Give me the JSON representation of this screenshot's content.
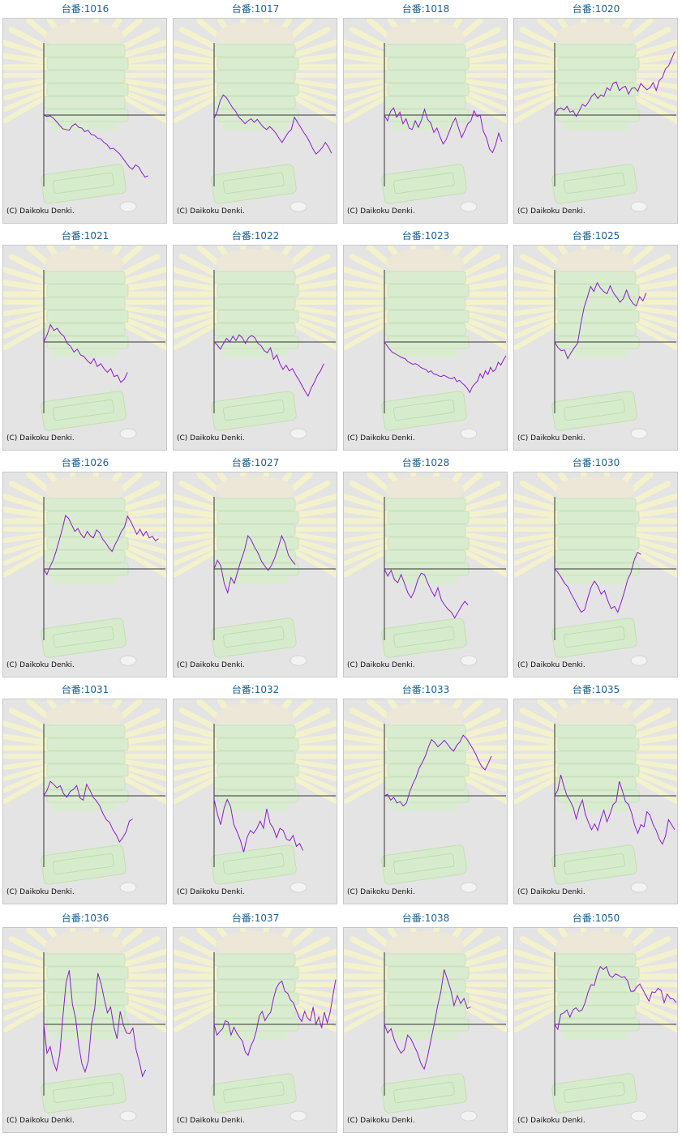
{
  "copyright": "(C) Daikoku Denki.",
  "colors": {
    "line": "#8a1ec8",
    "title": "#1c5f8e",
    "axis": "#333333",
    "background": "#e4e4e4"
  },
  "charts": [
    {
      "title": "台番:1016",
      "chart_data": {
        "type": "line",
        "values": [
          0,
          -2,
          -1,
          -4,
          -9,
          -14,
          -19,
          -20,
          -21,
          -15,
          -12,
          -17,
          -18,
          -23,
          -21,
          -27,
          -28,
          -32,
          -33,
          -38,
          -41,
          -47,
          -46,
          -50,
          -54,
          -60,
          -66,
          -72,
          -75,
          -69,
          -72,
          -80,
          -86,
          -84
        ]
      }
    },
    {
      "title": "台番:1017",
      "chart_data": {
        "type": "line",
        "values": [
          -5,
          5,
          20,
          28,
          24,
          17,
          10,
          5,
          -3,
          -7,
          -12,
          -8,
          -5,
          -10,
          -6,
          -12,
          -17,
          -20,
          -16,
          -20,
          -25,
          -32,
          -38,
          -31,
          -24,
          -20,
          -3,
          -10,
          -17,
          -24,
          -30,
          -38,
          -47,
          -54,
          -50,
          -45,
          -38,
          -44,
          -53
        ]
      }
    },
    {
      "title": "台番:1018",
      "chart_data": {
        "type": "line",
        "values": [
          0,
          -8,
          5,
          10,
          -3,
          4,
          -12,
          -5,
          -18,
          -20,
          -8,
          -17,
          -7,
          8,
          -6,
          -11,
          -24,
          -18,
          -30,
          -40,
          -34,
          -23,
          -12,
          -4,
          -18,
          -31,
          -22,
          -12,
          -8,
          6,
          -2,
          0,
          -22,
          -31,
          -47,
          -52,
          -41,
          -25,
          -37
        ]
      }
    },
    {
      "title": "台番:1020",
      "chart_data": {
        "type": "line",
        "values": [
          0,
          8,
          10,
          7,
          12,
          4,
          6,
          -2,
          6,
          15,
          12,
          18,
          26,
          30,
          23,
          28,
          26,
          38,
          34,
          44,
          46,
          34,
          38,
          40,
          29,
          37,
          38,
          33,
          44,
          39,
          35,
          38,
          45,
          34,
          48,
          52,
          64,
          68,
          78,
          88
        ]
      }
    },
    {
      "title": "台番:1021",
      "chart_data": {
        "type": "line",
        "values": [
          0,
          10,
          24,
          16,
          19,
          12,
          8,
          -2,
          -6,
          -14,
          -10,
          -18,
          -20,
          -26,
          -30,
          -23,
          -34,
          -30,
          -37,
          -42,
          -37,
          -48,
          -46,
          -56,
          -52,
          -42
        ]
      }
    },
    {
      "title": "台番:1022",
      "chart_data": {
        "type": "line",
        "values": [
          0,
          -4,
          -10,
          -2,
          5,
          0,
          8,
          2,
          10,
          6,
          -2,
          6,
          9,
          6,
          -2,
          -5,
          -12,
          -15,
          -8,
          -24,
          -18,
          -30,
          -38,
          -32,
          -40,
          -37,
          -45,
          -52,
          -60,
          -68,
          -75,
          -64,
          -56,
          -46,
          -40,
          -30
        ]
      }
    },
    {
      "title": "台番:1023",
      "chart_data": {
        "type": "line",
        "values": [
          0,
          -5,
          -10,
          -14,
          -16,
          -18,
          -20,
          -22,
          -23,
          -27,
          -29,
          -31,
          -30,
          -32,
          -35,
          -37,
          -38,
          -42,
          -40,
          -44,
          -45,
          -47,
          -48,
          -46,
          -48,
          -50,
          -51,
          -49,
          -55,
          -53,
          -57,
          -60,
          -64,
          -70,
          -62,
          -58,
          -54,
          -44,
          -50,
          -40,
          -45,
          -35,
          -41,
          -38,
          -28,
          -32,
          -25,
          -19
        ]
      }
    },
    {
      "title": "台番:1025",
      "chart_data": {
        "type": "line",
        "values": [
          0,
          -8,
          -12,
          -11,
          -23,
          -15,
          -8,
          -2,
          25,
          48,
          62,
          77,
          70,
          82,
          75,
          70,
          67,
          78,
          68,
          62,
          55,
          60,
          72,
          60,
          53,
          50,
          63,
          57,
          68
        ]
      }
    },
    {
      "title": "台番:1026",
      "chart_data": {
        "type": "line",
        "values": [
          0,
          -8,
          3,
          12,
          25,
          40,
          56,
          74,
          70,
          61,
          52,
          56,
          48,
          43,
          52,
          46,
          43,
          54,
          50,
          41,
          36,
          29,
          24,
          34,
          42,
          52,
          58,
          73,
          66,
          57,
          48,
          55,
          46,
          52,
          43,
          45,
          39,
          42
        ]
      }
    },
    {
      "title": "台番:1027",
      "chart_data": {
        "type": "line",
        "values": [
          0,
          12,
          4,
          -20,
          -33,
          -12,
          -20,
          -3,
          12,
          26,
          46,
          40,
          30,
          22,
          11,
          4,
          -2,
          5,
          16,
          30,
          46,
          36,
          19,
          12,
          6
        ]
      }
    },
    {
      "title": "台番:1028",
      "chart_data": {
        "type": "line",
        "values": [
          0,
          -10,
          -2,
          -15,
          -19,
          -8,
          -20,
          -33,
          -40,
          -30,
          -15,
          -6,
          -8,
          -20,
          -30,
          -38,
          -26,
          -43,
          -50,
          -56,
          -60,
          -68,
          -60,
          -52,
          -45,
          -50
        ]
      }
    },
    {
      "title": "台番:1030",
      "chart_data": {
        "type": "line",
        "values": [
          0,
          -5,
          -12,
          -20,
          -25,
          -35,
          -43,
          -52,
          -60,
          -57,
          -40,
          -25,
          -17,
          -24,
          -35,
          -30,
          -44,
          -55,
          -52,
          -60,
          -47,
          -32,
          -15,
          -5,
          13,
          23,
          20
        ]
      }
    },
    {
      "title": "台番:1031",
      "chart_data": {
        "type": "line",
        "values": [
          0,
          8,
          20,
          16,
          11,
          14,
          3,
          -2,
          6,
          9,
          14,
          -3,
          -6,
          16,
          8,
          -2,
          -7,
          -14,
          -25,
          -33,
          -37,
          -47,
          -54,
          -64,
          -58,
          -50,
          -35,
          -32
        ]
      }
    },
    {
      "title": "台番:1032",
      "chart_data": {
        "type": "line",
        "values": [
          -5,
          -25,
          -40,
          -18,
          -5,
          -15,
          -40,
          -50,
          -62,
          -78,
          -58,
          -48,
          -52,
          -45,
          -35,
          -45,
          -18,
          -38,
          -45,
          -58,
          -45,
          -48,
          -60,
          -62,
          -55,
          -70,
          -66,
          -76
        ]
      }
    },
    {
      "title": "台番:1033",
      "chart_data": {
        "type": "line",
        "values": [
          0,
          2,
          -6,
          -2,
          -10,
          -8,
          -14,
          -10,
          5,
          16,
          25,
          38,
          46,
          55,
          68,
          78,
          74,
          68,
          72,
          77,
          72,
          66,
          62,
          70,
          75,
          84,
          80,
          73,
          66,
          58,
          48,
          40,
          36,
          45,
          55
        ]
      }
    },
    {
      "title": "台番:1035",
      "chart_data": {
        "type": "line",
        "values": [
          0,
          8,
          29,
          13,
          0,
          -7,
          -16,
          -32,
          -16,
          -6,
          -26,
          -37,
          -47,
          -39,
          -48,
          -32,
          -20,
          -36,
          -25,
          -12,
          -8,
          20,
          7,
          -8,
          -12,
          -24,
          -41,
          -52,
          -40,
          -43,
          -22,
          -27,
          -40,
          -48,
          -60,
          -67,
          -56,
          -33,
          -40,
          -47
        ]
      }
    },
    {
      "title": "台番:1036",
      "chart_data": {
        "type": "line",
        "values": [
          0,
          -40,
          -31,
          -52,
          -64,
          -42,
          10,
          58,
          75,
          28,
          8,
          -30,
          -55,
          -66,
          -50,
          0,
          22,
          71,
          56,
          35,
          16,
          24,
          -3,
          -20,
          18,
          -1,
          -12,
          -13,
          -5,
          -35,
          -52,
          -72,
          -63
        ]
      }
    },
    {
      "title": "台番:1037",
      "chart_data": {
        "type": "line",
        "values": [
          0,
          -15,
          -10,
          -6,
          5,
          3,
          -15,
          -4,
          -12,
          -18,
          -23,
          -38,
          -43,
          -30,
          -22,
          -8,
          12,
          18,
          5,
          12,
          17,
          36,
          50,
          57,
          60,
          46,
          43,
          34,
          30,
          20,
          10,
          4,
          18,
          9,
          5,
          24,
          0,
          10,
          -5,
          17,
          2,
          16,
          40,
          62
        ]
      }
    },
    {
      "title": "台番:1038",
      "chart_data": {
        "type": "line",
        "values": [
          0,
          -12,
          -6,
          -22,
          -32,
          -40,
          -35,
          -15,
          -20,
          -30,
          -40,
          -54,
          -62,
          -45,
          -22,
          0,
          25,
          45,
          76,
          62,
          48,
          26,
          40,
          29,
          36,
          22,
          24
        ]
      }
    },
    {
      "title": "台番:1050",
      "chart_data": {
        "type": "line",
        "values": [
          0,
          -7,
          14,
          16,
          20,
          10,
          20,
          23,
          18,
          20,
          30,
          45,
          55,
          54,
          70,
          80,
          76,
          80,
          68,
          65,
          70,
          68,
          65,
          66,
          60,
          46,
          46,
          52,
          56,
          48,
          40,
          32,
          45,
          44,
          50,
          47,
          30,
          42,
          36,
          35,
          30
        ]
      }
    }
  ]
}
